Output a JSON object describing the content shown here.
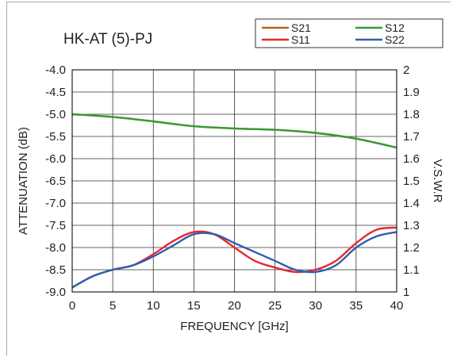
{
  "chart_data": {
    "type": "line",
    "title": "HK-AT (5)-PJ",
    "xlabel": "FREQUENCY [GHz]",
    "ylabel_left": "ATTENUATION (dB)",
    "ylabel_right": "V.S.W.R",
    "xlim": [
      0,
      40
    ],
    "ylim_left": [
      -9.0,
      -4.0
    ],
    "ylim_right": [
      1.0,
      2.0
    ],
    "x_ticks": [
      "0",
      "5",
      "10",
      "15",
      "20",
      "25",
      "30",
      "35",
      "40"
    ],
    "y_ticks_left": [
      "-4.0",
      "-4.5",
      "-5.0",
      "-5.5",
      "-6.0",
      "-6.5",
      "-7.0",
      "-7.5",
      "-8.0",
      "-8.5",
      "-9.0"
    ],
    "y_ticks_right": [
      "2",
      "1.9",
      "1.8",
      "1.7",
      "1.6",
      "1.5",
      "1.4",
      "1.3",
      "1.2",
      "1.1",
      "1"
    ],
    "grid": true,
    "legend_position": "top-right",
    "series": [
      {
        "name": "S21",
        "axis": "left",
        "color": "#b5651d",
        "x": [
          0,
          5,
          10,
          15,
          20,
          25,
          30,
          35,
          40
        ],
        "y": [
          -5.0,
          -5.06,
          -5.16,
          -5.27,
          -5.32,
          -5.35,
          -5.42,
          -5.55,
          -5.75
        ]
      },
      {
        "name": "S12",
        "axis": "left",
        "color": "#3a9a3a",
        "x": [
          0,
          5,
          10,
          15,
          20,
          25,
          30,
          35,
          40
        ],
        "y": [
          -5.0,
          -5.06,
          -5.16,
          -5.27,
          -5.32,
          -5.35,
          -5.42,
          -5.55,
          -5.75
        ]
      },
      {
        "name": "S11",
        "axis": "right",
        "color": "#e8262b",
        "x": [
          0,
          2.5,
          5,
          7.5,
          10,
          12.5,
          15,
          17.5,
          20,
          22.5,
          25,
          27.5,
          30,
          32.5,
          35,
          37.5,
          40
        ],
        "y": [
          1.02,
          1.07,
          1.1,
          1.12,
          1.17,
          1.23,
          1.27,
          1.26,
          1.2,
          1.14,
          1.11,
          1.09,
          1.1,
          1.14,
          1.22,
          1.28,
          1.29
        ]
      },
      {
        "name": "S22",
        "axis": "right",
        "color": "#2f5fb0",
        "x": [
          0,
          2.5,
          5,
          7.5,
          10,
          12.5,
          15,
          17.5,
          20,
          22.5,
          25,
          27.5,
          30,
          32.5,
          35,
          37.5,
          40
        ],
        "y": [
          1.02,
          1.07,
          1.1,
          1.12,
          1.16,
          1.21,
          1.26,
          1.26,
          1.22,
          1.18,
          1.14,
          1.1,
          1.09,
          1.12,
          1.2,
          1.25,
          1.27
        ]
      }
    ]
  }
}
